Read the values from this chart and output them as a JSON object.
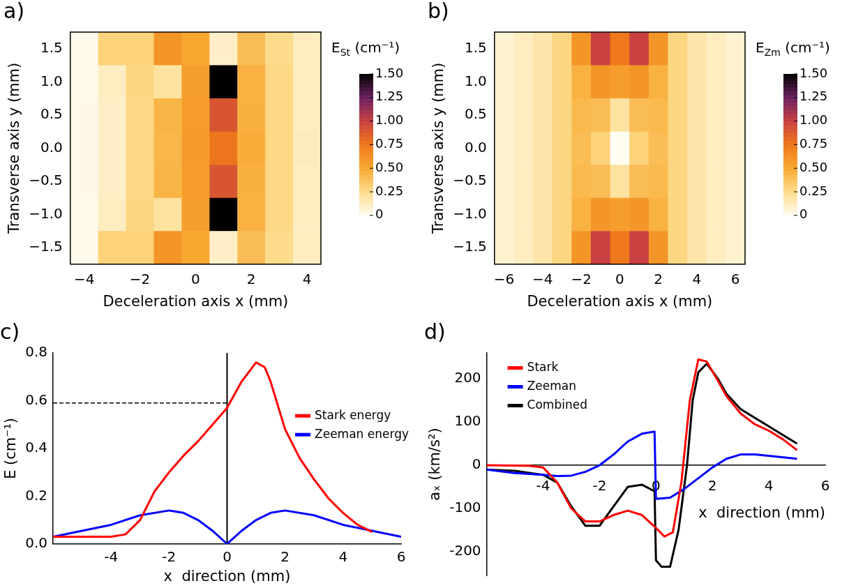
{
  "chart_data": [
    {
      "type": "heatmap",
      "title": "a)",
      "xlabel": "Deceleration axis x (mm)",
      "ylabel": "Transverse axis y (mm)",
      "clabel": "E$_{St}$ (cm⁻¹)",
      "categories": [
        "−4",
        null,
        "−2",
        null,
        "0",
        null,
        "2",
        null,
        "4"
      ],
      "y_categories": [
        "1.5",
        "1.0",
        "0.5",
        "0.0",
        "−0.5",
        "−1.0",
        "−1.5"
      ],
      "cells": [
        [
          0.02,
          0.3,
          0.3,
          0.6,
          0.5,
          0.1,
          0.4,
          0.25,
          0.12
        ],
        [
          0.02,
          0.12,
          0.28,
          0.2,
          0.55,
          1.5,
          0.45,
          0.27,
          0.12
        ],
        [
          0.03,
          0.1,
          0.27,
          0.44,
          0.56,
          0.9,
          0.46,
          0.27,
          0.12
        ],
        [
          0.03,
          0.1,
          0.27,
          0.43,
          0.57,
          0.76,
          0.47,
          0.27,
          0.13
        ],
        [
          0.03,
          0.1,
          0.27,
          0.44,
          0.56,
          0.9,
          0.46,
          0.27,
          0.12
        ],
        [
          0.02,
          0.12,
          0.28,
          0.2,
          0.55,
          1.5,
          0.45,
          0.27,
          0.12
        ],
        [
          0.02,
          0.3,
          0.3,
          0.6,
          0.5,
          0.1,
          0.4,
          0.25,
          0.12
        ]
      ],
      "clim": [
        0,
        1.5
      ],
      "cticks": [
        0,
        0.25,
        {
          "value": 0.5,
          "label": "0.50"
        },
        0.75,
        {
          "value": 1,
          "label": "1.00"
        },
        1.25,
        {
          "value": 1.5,
          "label": "1.50"
        }
      ]
    },
    {
      "type": "heatmap",
      "title": "b)",
      "xlabel": "Deceleration axis x (mm)",
      "ylabel": "Transverse axis y (mm)",
      "clabel": "E$_{Zm}$ (cm⁻¹)",
      "categories": [
        "−6",
        null,
        "−4",
        null,
        "−2",
        null,
        "0",
        null,
        "2",
        null,
        "4",
        null,
        "6"
      ],
      "y_categories": [
        "1.5",
        "1.0",
        "0.5",
        "0.0",
        "−0.5",
        "−1.0",
        "−1.5"
      ],
      "cells": [
        [
          0.08,
          0.12,
          0.18,
          0.28,
          0.6,
          1.0,
          0.75,
          1.0,
          0.6,
          0.28,
          0.18,
          0.12,
          0.08
        ],
        [
          0.08,
          0.12,
          0.18,
          0.28,
          0.45,
          0.6,
          0.55,
          0.6,
          0.45,
          0.28,
          0.18,
          0.12,
          0.08
        ],
        [
          0.08,
          0.12,
          0.18,
          0.28,
          0.42,
          0.4,
          0.2,
          0.4,
          0.42,
          0.28,
          0.18,
          0.12,
          0.08
        ],
        [
          0.08,
          0.12,
          0.18,
          0.28,
          0.4,
          0.3,
          0.0,
          0.3,
          0.4,
          0.28,
          0.18,
          0.12,
          0.08
        ],
        [
          0.08,
          0.12,
          0.18,
          0.28,
          0.42,
          0.4,
          0.2,
          0.4,
          0.42,
          0.28,
          0.18,
          0.12,
          0.08
        ],
        [
          0.08,
          0.12,
          0.18,
          0.28,
          0.45,
          0.6,
          0.55,
          0.6,
          0.45,
          0.28,
          0.18,
          0.12,
          0.08
        ],
        [
          0.08,
          0.12,
          0.18,
          0.28,
          0.6,
          1.0,
          0.75,
          1.0,
          0.6,
          0.28,
          0.18,
          0.12,
          0.08
        ]
      ],
      "clim": [
        0,
        1.5
      ],
      "cticks": [
        0,
        0.25,
        {
          "value": 0.5,
          "label": "0.50"
        },
        0.75,
        {
          "value": 1,
          "label": "1.00"
        },
        1.25,
        {
          "value": 1.5,
          "label": "1.50"
        }
      ]
    },
    {
      "type": "line",
      "title": "c)",
      "xlabel": "x  direction (mm)",
      "ylabel": "E (cm⁻¹)",
      "legend": "top right",
      "marker": "none",
      "xlim": [
        -6,
        6
      ],
      "xticks": [
        {
          "value": -6,
          "label": null
        },
        -4,
        -2,
        0,
        2,
        4,
        6
      ],
      "ylim": [
        0,
        0.8
      ],
      "yticks": [
        {
          "value": 0,
          "label": "0.0"
        },
        {
          "value": 0.2,
          "label": "0.2"
        },
        {
          "value": 0.4,
          "label": "0.4"
        },
        {
          "value": 0.6,
          "label": "0.6"
        },
        {
          "value": 0.8,
          "label": "0.8"
        }
      ],
      "ref_lines": [
        {
          "axis": "x",
          "value": 0,
          "color": "#000000"
        }
      ],
      "series": [
        {
          "name": "Stark energy",
          "color": "#ff0000",
          "x": [
            -6,
            -4,
            -3.5,
            -3,
            -2.5,
            -2,
            -1.5,
            -1,
            -0.5,
            0,
            0.5,
            1,
            1.3,
            1.5,
            2,
            2.5,
            3,
            3.5,
            4,
            4.5,
            5
          ],
          "values": [
            0.03,
            0.03,
            0.04,
            0.1,
            0.22,
            0.3,
            0.37,
            0.43,
            0.5,
            0.57,
            0.68,
            0.76,
            0.74,
            0.68,
            0.48,
            0.36,
            0.27,
            0.19,
            0.13,
            0.08,
            0.05
          ]
        },
        {
          "name": "Zeeman energy",
          "color": "#0000ff",
          "x": [
            -6,
            -5,
            -4,
            -3,
            -2,
            -1.5,
            -1,
            -0.5,
            0,
            0.5,
            1,
            1.5,
            2,
            3,
            4,
            5,
            6
          ],
          "values": [
            0.03,
            0.055,
            0.08,
            0.12,
            0.14,
            0.13,
            0.1,
            0.055,
            0,
            0.055,
            0.1,
            0.13,
            0.14,
            0.12,
            0.08,
            0.055,
            0.03
          ]
        },
        {
          "type": "line",
          "color": "#000000",
          "line_style": "dashed",
          "x": [
            -6,
            0
          ],
          "values": [
            0.59,
            0.59
          ]
        }
      ]
    },
    {
      "type": "line",
      "title": "d)",
      "xlabel": "x  direction (mm)",
      "ylabel": "aₓ (km/s²)",
      "legend": "top left",
      "marker": "none",
      "xlim": [
        -6,
        6
      ],
      "xticks": [
        {
          "value": -6,
          "label": null
        },
        -4,
        -2,
        0,
        2,
        4,
        6
      ],
      "ylim": [
        -255,
        260
      ],
      "yticks": [
        -200,
        -100,
        0,
        100,
        200
      ],
      "series": [
        {
          "name": "Stark",
          "color": "#ff0000",
          "x": [
            -6,
            -4.5,
            -4,
            -3.5,
            -3,
            -2.5,
            -2,
            -1.5,
            -1,
            -0.5,
            0,
            0.3,
            0.6,
            0.9,
            1.2,
            1.5,
            1.8,
            2.2,
            2.5,
            3,
            3.5,
            4,
            4.5,
            5
          ],
          "values": [
            0,
            -1,
            -5,
            -40,
            -100,
            -130,
            -130,
            -115,
            -105,
            -115,
            -145,
            -165,
            -155,
            -40,
            150,
            245,
            240,
            195,
            160,
            120,
            95,
            80,
            60,
            35
          ]
        },
        {
          "name": "Zeeman",
          "color": "#0000ff",
          "x": [
            -6,
            -5,
            -4,
            -3.5,
            -3,
            -2.5,
            -2,
            -1.5,
            -1,
            -0.5,
            -0.05,
            0,
            0.5,
            1,
            1.5,
            2,
            2.5,
            3,
            3.5,
            4,
            5
          ],
          "values": [
            -10,
            -18,
            -22,
            -25,
            -24,
            -15,
            0,
            25,
            55,
            73,
            78,
            -78,
            -75,
            -55,
            -30,
            -5,
            15,
            25,
            25,
            22,
            15
          ]
        },
        {
          "name": "Combined",
          "color": "#000000",
          "x": [
            -6,
            -5,
            -4,
            -3.5,
            -3,
            -2.5,
            -2,
            -1.5,
            -1,
            -0.5,
            -0.05,
            0,
            0.2,
            0.5,
            0.8,
            1.1,
            1.3,
            1.5,
            1.8,
            2.2,
            2.5,
            3,
            3.5,
            4,
            4.5,
            5
          ],
          "values": [
            -10,
            -13,
            -22,
            -40,
            -95,
            -140,
            -140,
            -95,
            -50,
            -45,
            -60,
            -220,
            -235,
            -235,
            -150,
            0,
            150,
            215,
            235,
            200,
            165,
            130,
            110,
            90,
            70,
            50
          ]
        }
      ]
    }
  ]
}
